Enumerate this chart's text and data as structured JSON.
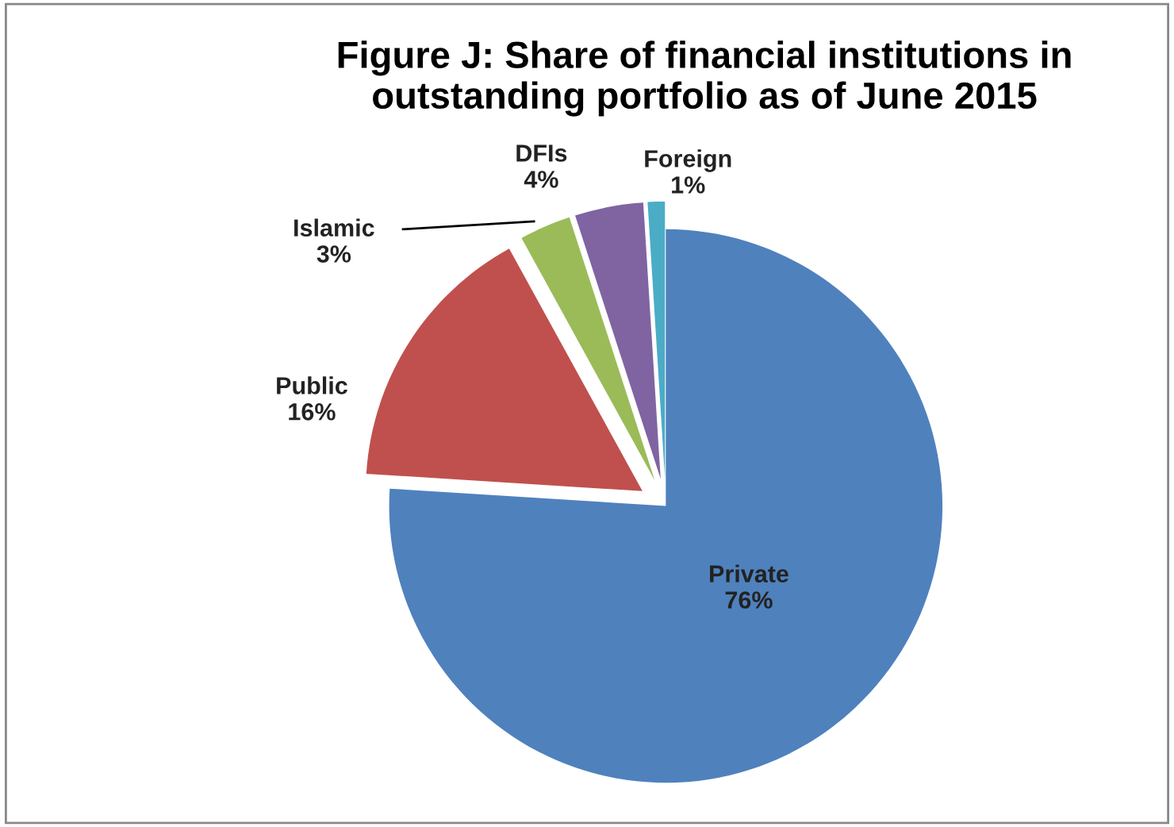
{
  "chart_data": {
    "type": "pie",
    "title": "Figure J: Share of financial institutions in outstanding portfolio as of June 2015",
    "categories": [
      "Private",
      "Public",
      "Islamic",
      "DFIs",
      "Foreign"
    ],
    "values": [
      76,
      16,
      3,
      4,
      1
    ],
    "value_labels": [
      "76%",
      "16%",
      "3%",
      "4%",
      "1%"
    ],
    "colors": [
      "#4f81bd",
      "#c0504d",
      "#9bbb59",
      "#8064a2",
      "#4bacc6"
    ],
    "legend": false
  }
}
